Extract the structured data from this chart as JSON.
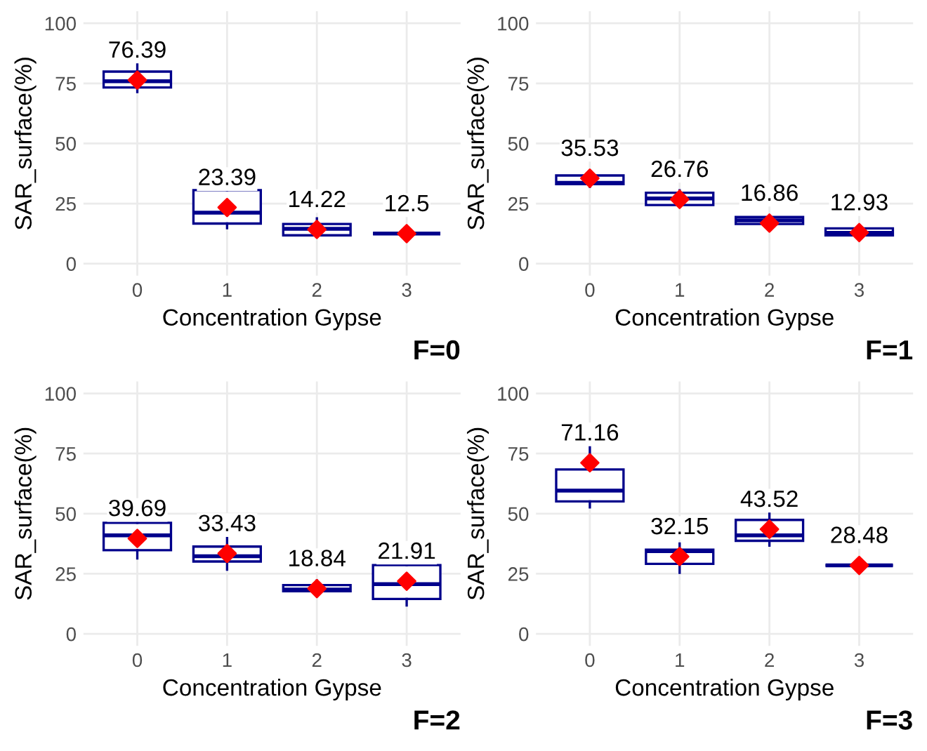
{
  "chart_data": [
    {
      "type": "box",
      "xlabel": "Concentration Gypse",
      "ylabel": "SAR_surface(%)",
      "categories": [
        "0",
        "1",
        "2",
        "3"
      ],
      "ylim": [
        -5,
        105
      ],
      "yticks": [
        0,
        25,
        50,
        75,
        100
      ],
      "grid": true,
      "annotations": [
        "F=0"
      ],
      "data_labels": true,
      "series": [
        {
          "color": "#00008b",
          "boxes": [
            {
              "low": 71.4,
              "q1": 73.3,
              "median": 75.9,
              "q3": 79.9,
              "high": 85.3
            },
            {
              "low": 14.8,
              "q1": 16.7,
              "median": 21.2,
              "q3": 30.6,
              "high": 35.2
            },
            {
              "low": 11.8,
              "q1": 11.8,
              "median": 14.5,
              "q3": 16.5,
              "high": 18.8
            },
            {
              "low": 12.5,
              "q1": 12.5,
              "median": 12.5,
              "q3": 12.5,
              "high": 12.5
            }
          ]
        },
        {
          "type": "scatter",
          "color": "#ff0000",
          "marker": "diamond",
          "x": [
            "0",
            "1",
            "2",
            "3"
          ],
          "values": [
            76.39,
            23.39,
            14.22,
            12.5
          ]
        }
      ]
    },
    {
      "type": "box",
      "xlabel": "Concentration Gypse",
      "ylabel": "SAR_surface(%)",
      "categories": [
        "0",
        "1",
        "2",
        "3"
      ],
      "ylim": [
        -5,
        105
      ],
      "yticks": [
        0,
        25,
        50,
        75,
        100
      ],
      "grid": true,
      "annotations": [
        "F=1"
      ],
      "data_labels": true,
      "series": [
        {
          "color": "#00008b",
          "boxes": [
            {
              "low": 32.0,
              "q1": 33.1,
              "median": 33.6,
              "q3": 36.7,
              "high": 36.7
            },
            {
              "low": 23.9,
              "q1": 24.4,
              "median": 27.1,
              "q3": 29.5,
              "high": 30.5
            },
            {
              "low": 16.0,
              "q1": 16.5,
              "median": 18.0,
              "q3": 19.4,
              "high": 19.9
            },
            {
              "low": 11.8,
              "q1": 11.8,
              "median": 12.8,
              "q3": 14.7,
              "high": 14.7
            }
          ]
        },
        {
          "type": "scatter",
          "color": "#ff0000",
          "marker": "diamond",
          "x": [
            "0",
            "1",
            "2",
            "3"
          ],
          "values": [
            35.53,
            26.76,
            16.86,
            12.93
          ]
        }
      ]
    },
    {
      "type": "box",
      "xlabel": "Concentration Gypse",
      "ylabel": "SAR_surface(%)",
      "categories": [
        "0",
        "1",
        "2",
        "3"
      ],
      "ylim": [
        -5,
        105
      ],
      "yticks": [
        0,
        25,
        50,
        75,
        100
      ],
      "grid": true,
      "annotations": [
        "F=2"
      ],
      "data_labels": true,
      "series": [
        {
          "color": "#00008b",
          "boxes": [
            {
              "low": 31.4,
              "q1": 34.8,
              "median": 41.0,
              "q3": 46.2,
              "high": 46.2
            },
            {
              "low": 26.7,
              "q1": 30.1,
              "median": 32.3,
              "q3": 36.3,
              "high": 42.7
            },
            {
              "low": 16.0,
              "q1": 17.7,
              "median": 18.4,
              "q3": 20.3,
              "high": 22.2
            },
            {
              "low": 11.8,
              "q1": 14.5,
              "median": 20.7,
              "q3": 28.6,
              "high": 33.3
            }
          ]
        },
        {
          "type": "scatter",
          "color": "#ff0000",
          "marker": "diamond",
          "x": [
            "0",
            "1",
            "2",
            "3"
          ],
          "values": [
            39.69,
            33.43,
            18.84,
            21.91
          ]
        }
      ]
    },
    {
      "type": "box",
      "xlabel": "Concentration Gypse",
      "ylabel": "SAR_surface(%)",
      "categories": [
        "0",
        "1",
        "2",
        "3"
      ],
      "ylim": [
        -5,
        105
      ],
      "yticks": [
        0,
        25,
        50,
        75,
        100
      ],
      "grid": true,
      "annotations": [
        "F=3"
      ],
      "data_labels": true,
      "series": [
        {
          "color": "#00008b",
          "boxes": [
            {
              "low": 52.6,
              "q1": 55.1,
              "median": 59.6,
              "q3": 68.4,
              "high": 83.6
            },
            {
              "low": 25.4,
              "q1": 29.1,
              "median": 34.4,
              "q3": 35.0,
              "high": 37.6
            },
            {
              "low": 36.7,
              "q1": 38.7,
              "median": 41.0,
              "q3": 47.4,
              "high": 54.5
            },
            {
              "low": 28.5,
              "q1": 28.5,
              "median": 28.5,
              "q3": 28.5,
              "high": 28.5
            }
          ]
        },
        {
          "type": "scatter",
          "color": "#ff0000",
          "marker": "diamond",
          "x": [
            "0",
            "1",
            "2",
            "3"
          ],
          "values": [
            71.16,
            32.15,
            43.52,
            28.48
          ]
        }
      ]
    }
  ]
}
